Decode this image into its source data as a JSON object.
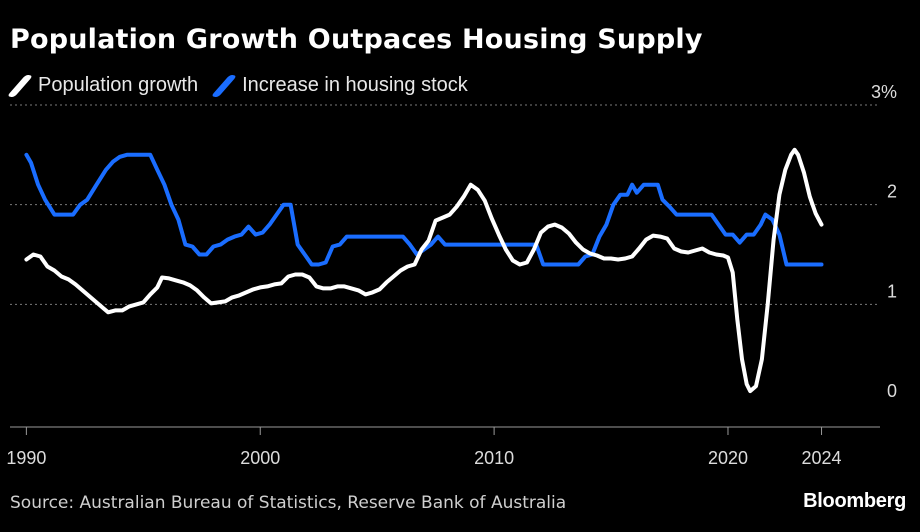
{
  "title": "Population Growth Outpaces Housing Supply",
  "legend": [
    {
      "label": "Population growth",
      "color": "#ffffff"
    },
    {
      "label": "Increase in housing stock",
      "color": "#1a6dff"
    }
  ],
  "source": "Source: Australian Bureau of Statistics, Reserve Bank of Australia",
  "brand": "Bloomberg",
  "chart_data": {
    "type": "line",
    "title": "Population Growth Outpaces Housing Supply",
    "xlabel": "",
    "ylabel": "",
    "xlim": [
      1989.3,
      2026.5
    ],
    "ylim": [
      -0.2,
      3.05
    ],
    "x_ticks": [
      {
        "value": 1990,
        "label": "1990"
      },
      {
        "value": 2000,
        "label": "2000"
      },
      {
        "value": 2010,
        "label": "2010"
      },
      {
        "value": 2020,
        "label": "2020"
      },
      {
        "value": 2024,
        "label": "2024"
      }
    ],
    "y_ticks": [
      {
        "value": 3,
        "label": "3%"
      },
      {
        "value": 2,
        "label": "2"
      },
      {
        "value": 1,
        "label": "1"
      },
      {
        "value": 0,
        "label": "0"
      }
    ],
    "grid": "horizontal dotted",
    "legend_position": "top-left",
    "series": [
      {
        "name": "Population growth",
        "color": "#ffffff",
        "points": [
          [
            1990.0,
            1.45
          ],
          [
            1990.3,
            1.5
          ],
          [
            1990.6,
            1.48
          ],
          [
            1990.9,
            1.38
          ],
          [
            1991.2,
            1.34
          ],
          [
            1991.5,
            1.28
          ],
          [
            1991.8,
            1.25
          ],
          [
            1992.1,
            1.2
          ],
          [
            1992.4,
            1.14
          ],
          [
            1992.7,
            1.08
          ],
          [
            1993.0,
            1.02
          ],
          [
            1993.3,
            0.96
          ],
          [
            1993.5,
            0.92
          ],
          [
            1993.8,
            0.94
          ],
          [
            1994.1,
            0.94
          ],
          [
            1994.4,
            0.98
          ],
          [
            1994.7,
            1.0
          ],
          [
            1995.0,
            1.02
          ],
          [
            1995.3,
            1.1
          ],
          [
            1995.6,
            1.17
          ],
          [
            1995.8,
            1.27
          ],
          [
            1996.1,
            1.26
          ],
          [
            1996.4,
            1.24
          ],
          [
            1996.7,
            1.22
          ],
          [
            1997.0,
            1.19
          ],
          [
            1997.3,
            1.14
          ],
          [
            1997.6,
            1.07
          ],
          [
            1997.9,
            1.01
          ],
          [
            1998.2,
            1.02
          ],
          [
            1998.5,
            1.03
          ],
          [
            1998.8,
            1.07
          ],
          [
            1999.1,
            1.09
          ],
          [
            1999.4,
            1.12
          ],
          [
            1999.7,
            1.15
          ],
          [
            2000.0,
            1.17
          ],
          [
            2000.3,
            1.18
          ],
          [
            2000.6,
            1.2
          ],
          [
            2000.9,
            1.21
          ],
          [
            2001.2,
            1.28
          ],
          [
            2001.5,
            1.3
          ],
          [
            2001.8,
            1.3
          ],
          [
            2002.1,
            1.27
          ],
          [
            2002.4,
            1.18
          ],
          [
            2002.7,
            1.16
          ],
          [
            2003.0,
            1.16
          ],
          [
            2003.3,
            1.18
          ],
          [
            2003.6,
            1.18
          ],
          [
            2003.9,
            1.16
          ],
          [
            2004.2,
            1.14
          ],
          [
            2004.5,
            1.1
          ],
          [
            2004.8,
            1.12
          ],
          [
            2005.1,
            1.15
          ],
          [
            2005.4,
            1.22
          ],
          [
            2005.7,
            1.28
          ],
          [
            2006.0,
            1.34
          ],
          [
            2006.3,
            1.38
          ],
          [
            2006.6,
            1.4
          ],
          [
            2006.9,
            1.55
          ],
          [
            2007.2,
            1.64
          ],
          [
            2007.5,
            1.84
          ],
          [
            2007.8,
            1.87
          ],
          [
            2008.1,
            1.9
          ],
          [
            2008.4,
            1.98
          ],
          [
            2008.7,
            2.08
          ],
          [
            2009.0,
            2.2
          ],
          [
            2009.3,
            2.15
          ],
          [
            2009.6,
            2.04
          ],
          [
            2009.9,
            1.86
          ],
          [
            2010.2,
            1.7
          ],
          [
            2010.5,
            1.55
          ],
          [
            2010.8,
            1.44
          ],
          [
            2011.1,
            1.4
          ],
          [
            2011.4,
            1.42
          ],
          [
            2011.7,
            1.55
          ],
          [
            2012.0,
            1.72
          ],
          [
            2012.3,
            1.78
          ],
          [
            2012.6,
            1.8
          ],
          [
            2012.9,
            1.77
          ],
          [
            2013.2,
            1.71
          ],
          [
            2013.5,
            1.62
          ],
          [
            2013.8,
            1.55
          ],
          [
            2014.1,
            1.51
          ],
          [
            2014.4,
            1.49
          ],
          [
            2014.7,
            1.46
          ],
          [
            2015.0,
            1.46
          ],
          [
            2015.3,
            1.45
          ],
          [
            2015.6,
            1.46
          ],
          [
            2015.9,
            1.48
          ],
          [
            2016.2,
            1.56
          ],
          [
            2016.5,
            1.65
          ],
          [
            2016.8,
            1.69
          ],
          [
            2017.1,
            1.68
          ],
          [
            2017.4,
            1.66
          ],
          [
            2017.7,
            1.56
          ],
          [
            2018.0,
            1.53
          ],
          [
            2018.3,
            1.52
          ],
          [
            2018.6,
            1.54
          ],
          [
            2018.9,
            1.56
          ],
          [
            2019.2,
            1.52
          ],
          [
            2019.5,
            1.5
          ],
          [
            2019.8,
            1.49
          ],
          [
            2020.0,
            1.47
          ],
          [
            2020.2,
            1.32
          ],
          [
            2020.4,
            0.85
          ],
          [
            2020.6,
            0.45
          ],
          [
            2020.8,
            0.2
          ],
          [
            2020.95,
            0.13
          ],
          [
            2021.2,
            0.18
          ],
          [
            2021.45,
            0.45
          ],
          [
            2021.7,
            1.0
          ],
          [
            2021.95,
            1.65
          ],
          [
            2022.2,
            2.1
          ],
          [
            2022.45,
            2.35
          ],
          [
            2022.7,
            2.5
          ],
          [
            2022.85,
            2.55
          ],
          [
            2023.0,
            2.5
          ],
          [
            2023.25,
            2.32
          ],
          [
            2023.5,
            2.08
          ],
          [
            2023.75,
            1.91
          ],
          [
            2024.0,
            1.8
          ]
        ]
      },
      {
        "name": "Increase in housing stock",
        "color": "#1a6dff",
        "points": [
          [
            1990.0,
            2.5
          ],
          [
            1990.2,
            2.42
          ],
          [
            1990.5,
            2.2
          ],
          [
            1990.8,
            2.05
          ],
          [
            1991.2,
            1.9
          ],
          [
            1991.6,
            1.9
          ],
          [
            1992.0,
            1.9
          ],
          [
            1992.3,
            2.0
          ],
          [
            1992.6,
            2.05
          ],
          [
            1993.0,
            2.2
          ],
          [
            1993.4,
            2.35
          ],
          [
            1993.7,
            2.43
          ],
          [
            1994.0,
            2.48
          ],
          [
            1994.3,
            2.5
          ],
          [
            1994.7,
            2.5
          ],
          [
            1995.0,
            2.5
          ],
          [
            1995.3,
            2.5
          ],
          [
            1995.6,
            2.35
          ],
          [
            1995.9,
            2.2
          ],
          [
            1996.2,
            2.0
          ],
          [
            1996.5,
            1.85
          ],
          [
            1996.8,
            1.6
          ],
          [
            1997.1,
            1.58
          ],
          [
            1997.4,
            1.5
          ],
          [
            1997.7,
            1.5
          ],
          [
            1998.0,
            1.58
          ],
          [
            1998.3,
            1.6
          ],
          [
            1998.6,
            1.65
          ],
          [
            1998.9,
            1.68
          ],
          [
            1999.2,
            1.7
          ],
          [
            1999.5,
            1.78
          ],
          [
            1999.8,
            1.7
          ],
          [
            2000.1,
            1.72
          ],
          [
            2000.4,
            1.8
          ],
          [
            2000.7,
            1.9
          ],
          [
            2001.0,
            2.0
          ],
          [
            2001.3,
            2.0
          ],
          [
            2001.6,
            1.6
          ],
          [
            2001.9,
            1.5
          ],
          [
            2002.2,
            1.4
          ],
          [
            2002.5,
            1.4
          ],
          [
            2002.8,
            1.42
          ],
          [
            2003.1,
            1.58
          ],
          [
            2003.4,
            1.6
          ],
          [
            2003.7,
            1.68
          ],
          [
            2004.0,
            1.68
          ],
          [
            2004.3,
            1.68
          ],
          [
            2004.6,
            1.68
          ],
          [
            2004.9,
            1.68
          ],
          [
            2005.2,
            1.68
          ],
          [
            2005.5,
            1.68
          ],
          [
            2005.8,
            1.68
          ],
          [
            2006.1,
            1.68
          ],
          [
            2006.4,
            1.6
          ],
          [
            2006.7,
            1.5
          ],
          [
            2007.0,
            1.55
          ],
          [
            2007.3,
            1.6
          ],
          [
            2007.6,
            1.68
          ],
          [
            2007.9,
            1.6
          ],
          [
            2008.2,
            1.6
          ],
          [
            2008.5,
            1.6
          ],
          [
            2008.8,
            1.6
          ],
          [
            2009.1,
            1.6
          ],
          [
            2009.4,
            1.6
          ],
          [
            2009.7,
            1.6
          ],
          [
            2010.0,
            1.6
          ],
          [
            2010.3,
            1.6
          ],
          [
            2010.6,
            1.6
          ],
          [
            2010.9,
            1.6
          ],
          [
            2011.2,
            1.6
          ],
          [
            2011.5,
            1.6
          ],
          [
            2011.8,
            1.6
          ],
          [
            2012.1,
            1.4
          ],
          [
            2012.4,
            1.4
          ],
          [
            2012.7,
            1.4
          ],
          [
            2013.0,
            1.4
          ],
          [
            2013.3,
            1.4
          ],
          [
            2013.6,
            1.4
          ],
          [
            2013.9,
            1.48
          ],
          [
            2014.2,
            1.5
          ],
          [
            2014.5,
            1.68
          ],
          [
            2014.8,
            1.8
          ],
          [
            2015.1,
            2.0
          ],
          [
            2015.4,
            2.1
          ],
          [
            2015.7,
            2.1
          ],
          [
            2015.9,
            2.2
          ],
          [
            2016.1,
            2.12
          ],
          [
            2016.4,
            2.2
          ],
          [
            2016.7,
            2.2
          ],
          [
            2017.0,
            2.2
          ],
          [
            2017.2,
            2.05
          ],
          [
            2017.5,
            1.98
          ],
          [
            2017.8,
            1.9
          ],
          [
            2018.1,
            1.9
          ],
          [
            2018.4,
            1.9
          ],
          [
            2018.7,
            1.9
          ],
          [
            2019.0,
            1.9
          ],
          [
            2019.3,
            1.9
          ],
          [
            2019.6,
            1.8
          ],
          [
            2019.9,
            1.7
          ],
          [
            2020.2,
            1.7
          ],
          [
            2020.5,
            1.62
          ],
          [
            2020.8,
            1.7
          ],
          [
            2021.1,
            1.7
          ],
          [
            2021.4,
            1.8
          ],
          [
            2021.6,
            1.9
          ],
          [
            2021.9,
            1.85
          ],
          [
            2022.2,
            1.7
          ],
          [
            2022.5,
            1.4
          ],
          [
            2022.8,
            1.4
          ],
          [
            2023.2,
            1.4
          ],
          [
            2023.6,
            1.4
          ],
          [
            2024.0,
            1.4
          ]
        ]
      }
    ]
  }
}
